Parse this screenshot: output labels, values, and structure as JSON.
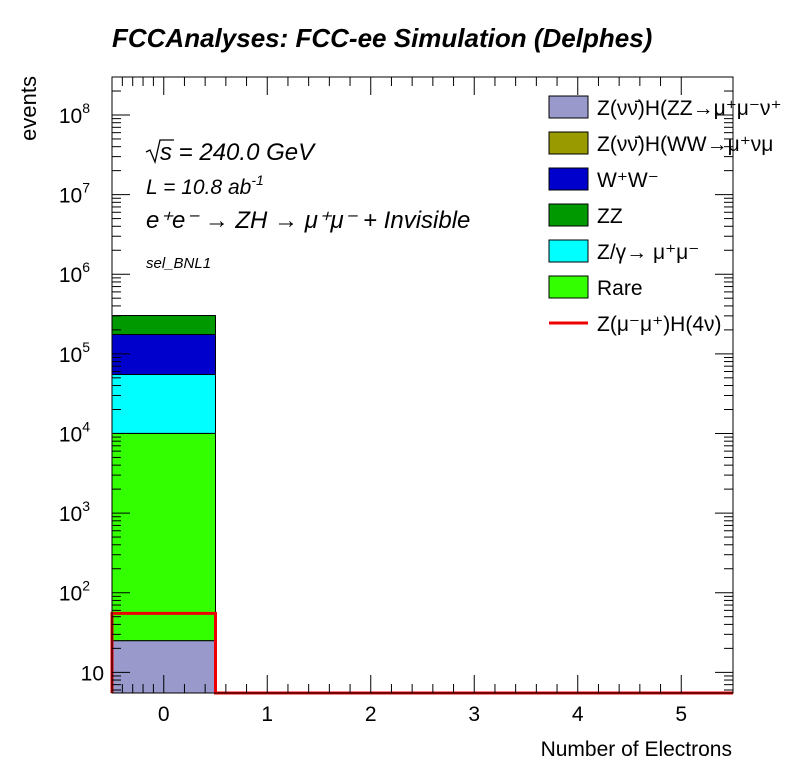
{
  "chart_data": {
    "type": "bar",
    "stacked": true,
    "title": "FCCAnalyses: FCC-ee Simulation (Delphes)",
    "xlabel": "Number of Electrons",
    "ylabel": "events",
    "y_scale": "log",
    "xlim": [
      -0.5,
      5.5
    ],
    "ylim": [
      5.5,
      300000000
    ],
    "x_ticks": [
      "0",
      "1",
      "2",
      "3",
      "4",
      "5"
    ],
    "y_ticks": [
      {
        "base": "10",
        "exp": "",
        "value": 10
      },
      {
        "base": "10",
        "exp": "2",
        "value": 100
      },
      {
        "base": "10",
        "exp": "3",
        "value": 1000
      },
      {
        "base": "10",
        "exp": "4",
        "value": 10000
      },
      {
        "base": "10",
        "exp": "5",
        "value": 100000
      },
      {
        "base": "10",
        "exp": "6",
        "value": 1000000
      },
      {
        "base": "10",
        "exp": "7",
        "value": 10000000
      },
      {
        "base": "10",
        "exp": "8",
        "value": 100000000
      }
    ],
    "annotations": {
      "sqrt_s": "s = 240.0 GeV",
      "lumi": "L = 10.8 ab",
      "lumi_exp": "-1",
      "process": "e⁺e⁻ → ZH → μ⁺μ⁻ + Invisible",
      "selection": "sel_BNL1"
    },
    "series": [
      {
        "name": "Z(νν̄)H(ZZ→μ⁺μ⁻ν⁺",
        "color": "#9999cc",
        "bins": [
          {
            "x": 0,
            "value": 25
          }
        ]
      },
      {
        "name": "Z(νν̄)H(WW→μ⁺νμ",
        "color": "#999900",
        "bins": [
          {
            "x": 0,
            "value": 0
          }
        ]
      },
      {
        "name": "W⁺W⁻",
        "color": "#0000cc",
        "bins": [
          {
            "x": 0,
            "value": 120000
          }
        ]
      },
      {
        "name": "ZZ",
        "color": "#009900",
        "bins": [
          {
            "x": 0,
            "value": 128000
          }
        ]
      },
      {
        "name": "Z/γ→ μ⁺μ⁻",
        "color": "#00ffff",
        "bins": [
          {
            "x": 0,
            "value": 45000
          }
        ]
      },
      {
        "name": "Rare",
        "color": "#33ff00",
        "bins": [
          {
            "x": 0,
            "value": 10000
          }
        ]
      }
    ],
    "signal": {
      "name": "Z(μ⁻μ⁺)H(4ν)",
      "color": "#ee0000",
      "bins": [
        {
          "x": 0,
          "value": 55
        }
      ]
    },
    "stack_order_bottom_to_top": [
      "Z(νν̄)H(ZZ→μ⁺μ⁻ν⁺",
      "Rare",
      "Z/γ→ μ⁺μ⁻",
      "W⁺W⁻",
      "ZZ"
    ]
  }
}
